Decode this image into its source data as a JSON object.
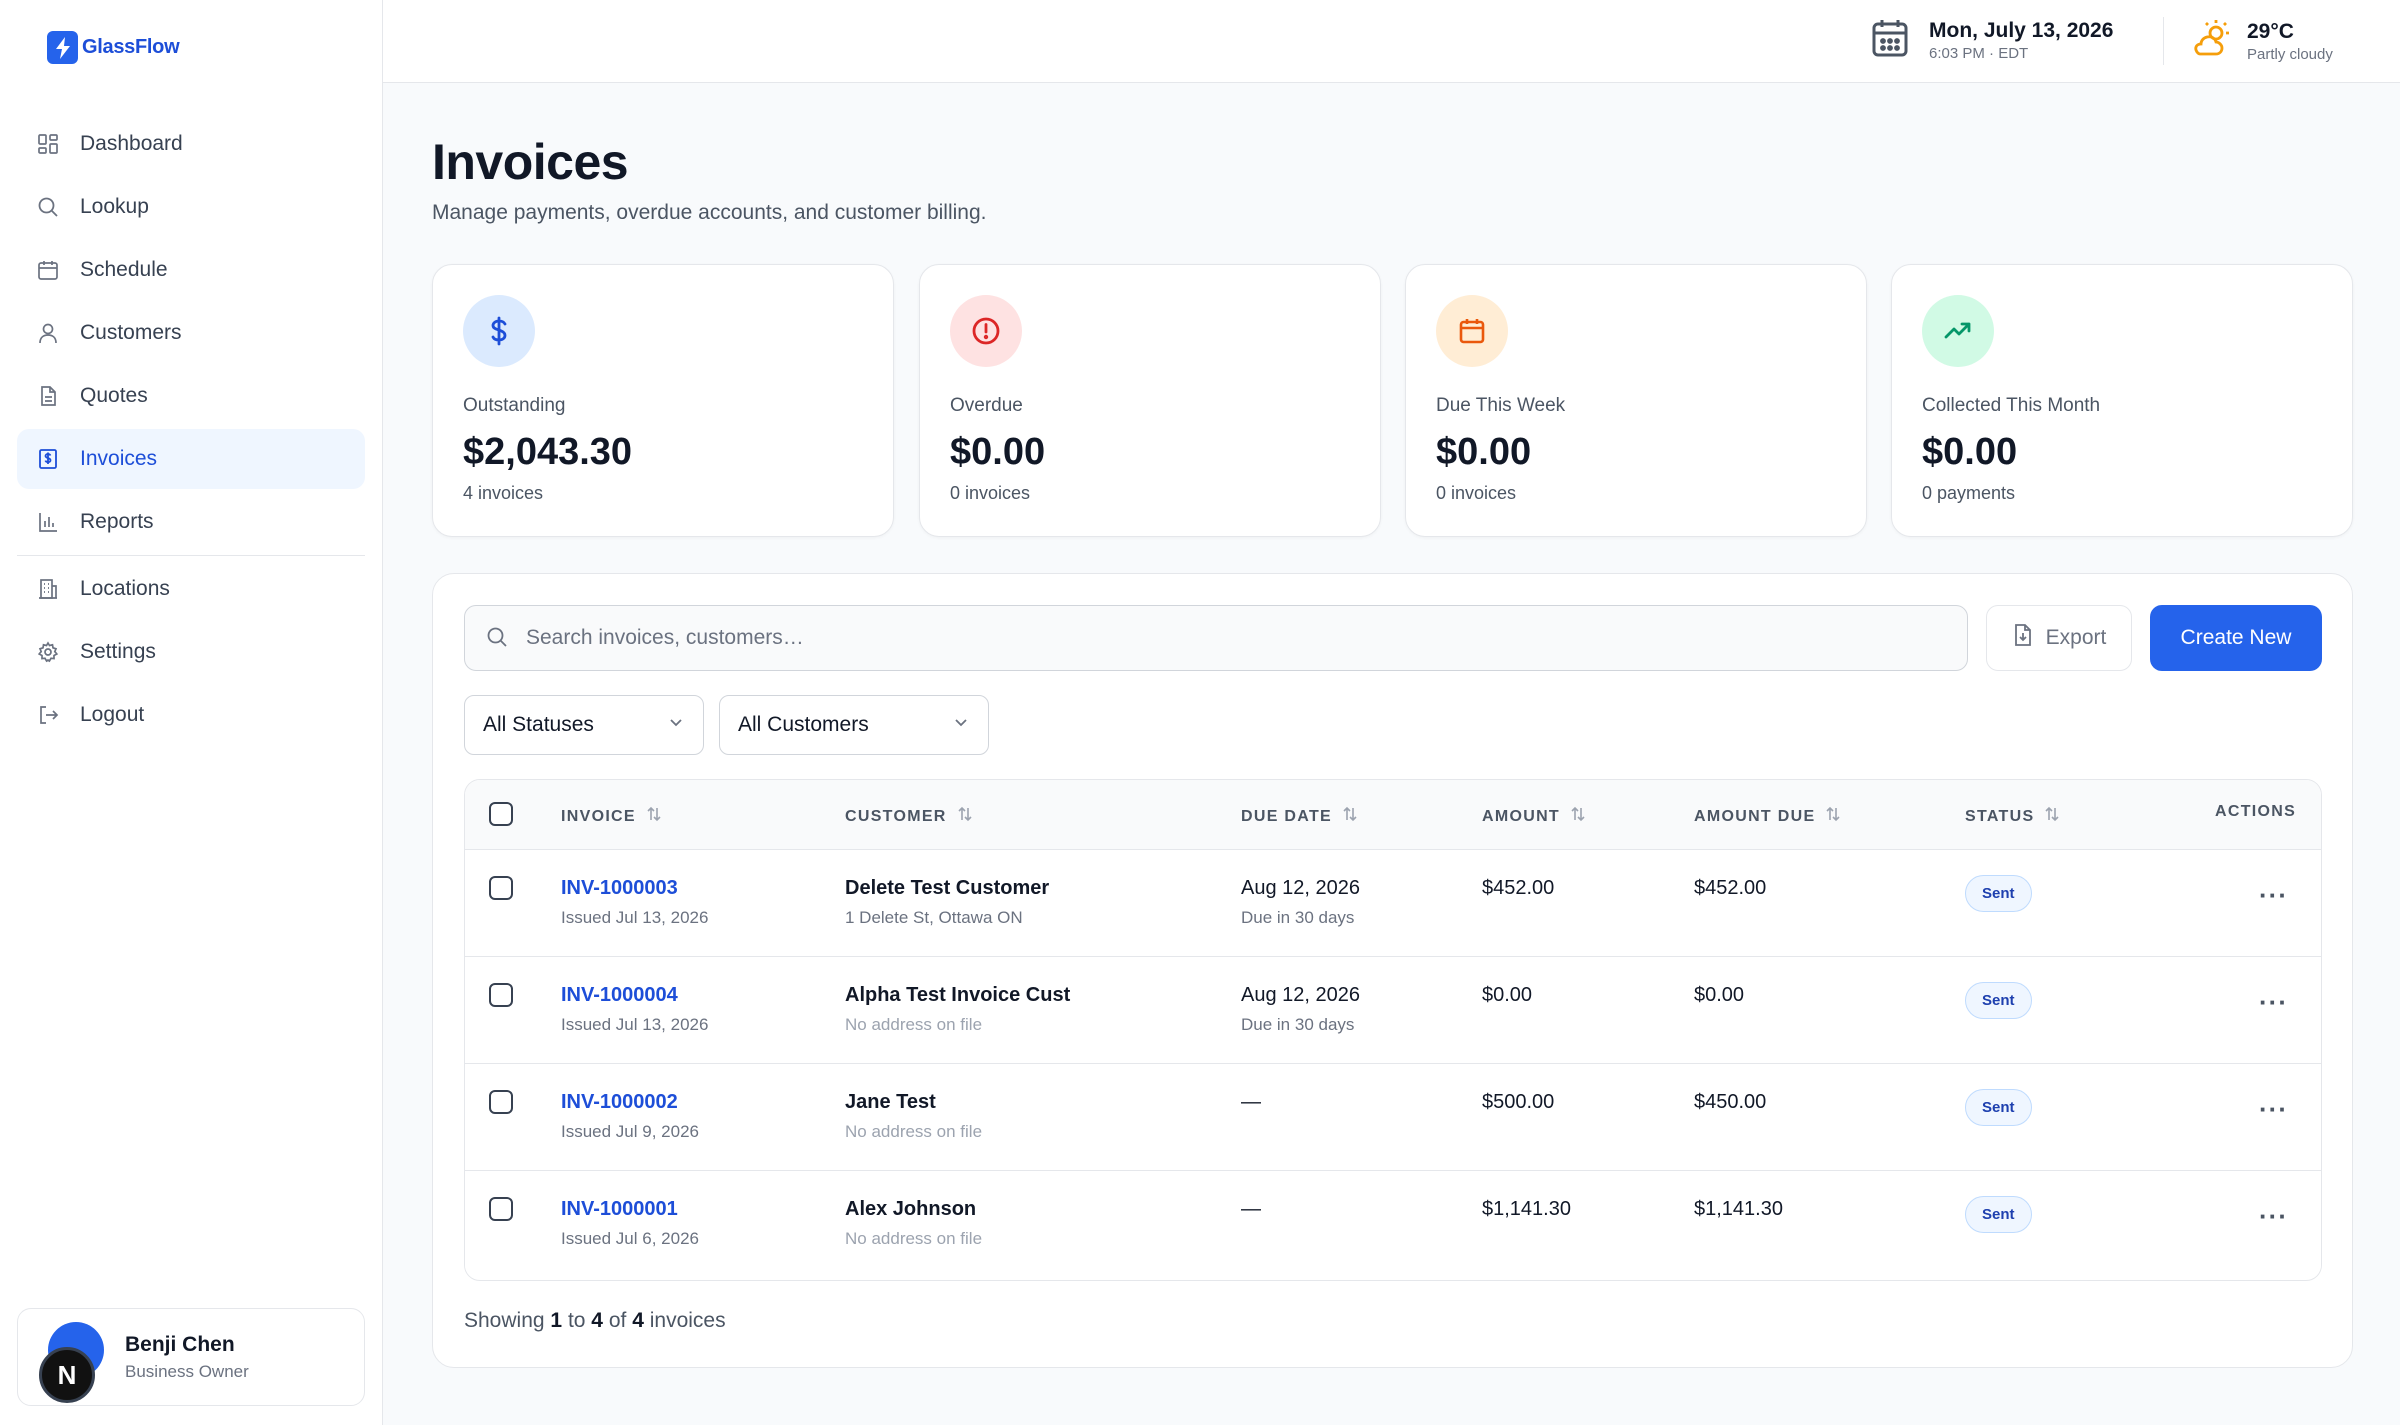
{
  "brand": {
    "name": "GlassFlow"
  },
  "sidebar": {
    "items": [
      {
        "label": "Dashboard",
        "icon": "grid-icon"
      },
      {
        "label": "Lookup",
        "icon": "search-icon"
      },
      {
        "label": "Schedule",
        "icon": "calendar-icon"
      },
      {
        "label": "Customers",
        "icon": "user-icon"
      },
      {
        "label": "Quotes",
        "icon": "document-icon"
      },
      {
        "label": "Invoices",
        "icon": "invoice-icon",
        "active": true
      },
      {
        "label": "Reports",
        "icon": "bar-chart-icon"
      }
    ],
    "secondary": [
      {
        "label": "Locations",
        "icon": "building-icon"
      },
      {
        "label": "Settings",
        "icon": "gear-icon"
      },
      {
        "label": "Logout",
        "icon": "logout-icon"
      }
    ]
  },
  "user": {
    "name": "Benji Chen",
    "role": "Business Owner",
    "initial": "N"
  },
  "topbar": {
    "date": "Mon, July 13, 2026",
    "time": "6:03 PM · EDT",
    "temperature": "29°C",
    "condition": "Partly cloudy"
  },
  "page": {
    "title": "Invoices",
    "subtitle": "Manage payments, overdue accounts, and customer billing."
  },
  "stats": [
    {
      "label": "Outstanding",
      "value": "$2,043.30",
      "sub": "4 invoices",
      "icon": "dollar-icon",
      "color": "#1d4ed8",
      "bg": "#dbeafe"
    },
    {
      "label": "Overdue",
      "value": "$0.00",
      "sub": "0 invoices",
      "icon": "alert-circle-icon",
      "color": "#dc2626",
      "bg": "#fee2e2"
    },
    {
      "label": "Due This Week",
      "value": "$0.00",
      "sub": "0 invoices",
      "icon": "calendar-icon",
      "color": "#ea580c",
      "bg": "#ffedd5"
    },
    {
      "label": "Collected This Month",
      "value": "$0.00",
      "sub": "0 payments",
      "icon": "trending-up-icon",
      "color": "#059669",
      "bg": "#d1fae5"
    }
  ],
  "toolbar": {
    "search_placeholder": "Search invoices, customers…",
    "export_label": "Export",
    "create_label": "Create New",
    "status_filter": "All Statuses",
    "customer_filter": "All Customers"
  },
  "table": {
    "columns": [
      "INVOICE",
      "CUSTOMER",
      "DUE DATE",
      "AMOUNT",
      "AMOUNT DUE",
      "STATUS",
      "ACTIONS"
    ],
    "rows": [
      {
        "id": "INV-1000003",
        "issued": "Issued Jul 13, 2026",
        "customer": "Delete Test Customer",
        "address": "1 Delete St, Ottawa ON",
        "has_address": true,
        "due": "Aug 12, 2026",
        "due_sub": "Due in 30 days",
        "amount": "$452.00",
        "amount_due": "$452.00",
        "status": "Sent"
      },
      {
        "id": "INV-1000004",
        "issued": "Issued Jul 13, 2026",
        "customer": "Alpha Test Invoice Cust",
        "address": "No address on file",
        "has_address": false,
        "due": "Aug 12, 2026",
        "due_sub": "Due in 30 days",
        "amount": "$0.00",
        "amount_due": "$0.00",
        "status": "Sent"
      },
      {
        "id": "INV-1000002",
        "issued": "Issued Jul 9, 2026",
        "customer": "Jane Test",
        "address": "No address on file",
        "has_address": false,
        "due": "—",
        "due_sub": "",
        "amount": "$500.00",
        "amount_due": "$450.00",
        "status": "Sent"
      },
      {
        "id": "INV-1000001",
        "issued": "Issued Jul 6, 2026",
        "customer": "Alex Johnson",
        "address": "No address on file",
        "has_address": false,
        "due": "—",
        "due_sub": "",
        "amount": "$1,141.30",
        "amount_due": "$1,141.30",
        "status": "Sent"
      }
    ],
    "actions_label": "···"
  },
  "pagination": {
    "prefix": "Showing",
    "from": "1",
    "to_word": "to",
    "to": "4",
    "of_word": "of",
    "total": "4",
    "suffix": "invoices"
  }
}
